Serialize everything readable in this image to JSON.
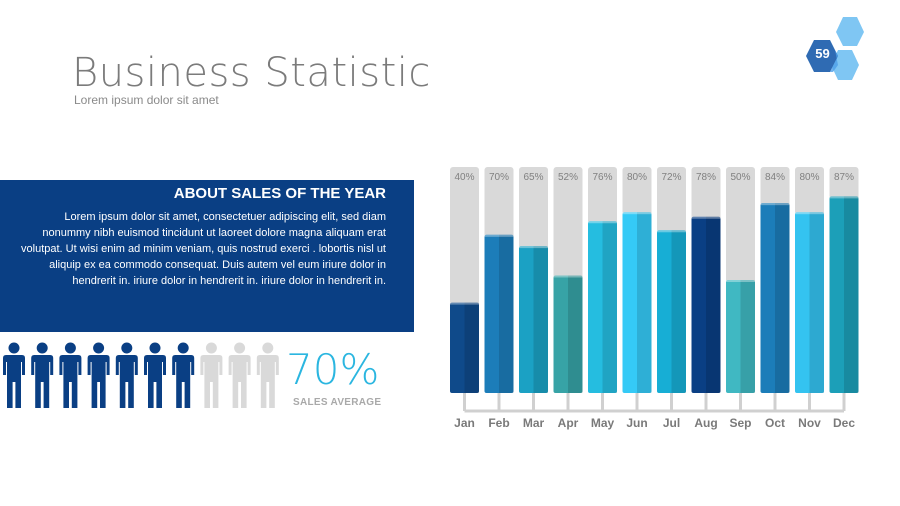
{
  "slide": {
    "title": "Business Statistic",
    "subtitle": "Lorem ipsum dolor sit amet",
    "page_number": "59"
  },
  "info": {
    "heading": "ABOUT SALES OF THE YEAR",
    "body": "Lorem ipsum dolor sit amet, consectetuer adipiscing elit, sed diam nonummy nibh euismod tincidunt ut laoreet dolore magna aliquam erat volutpat. Ut wisi enim ad minim veniam, quis nostrud exerci . lobortis nisl ut aliquip ex ea commodo consequat. Duis autem vel eum iriure dolor in hendrerit in. iriure dolor in hendrerit in. iriure dolor in hendrerit in."
  },
  "sales_average": {
    "value": "70%",
    "label": "SALES AVERAGE",
    "filled_people": 7,
    "total_people": 10,
    "filled_color": "#0a3f84",
    "empty_color": "#d9d9d9"
  },
  "colors": {
    "brand_dark": "#0a3f84",
    "accent_cyan": "#2bb6e0",
    "badge_light": "#7fc6f3",
    "badge_mid": "#4d9fe8",
    "badge_dark": "#2f6bb3",
    "track": "#d9d9d9"
  },
  "chart_data": {
    "type": "bar",
    "categories": [
      "Jan",
      "Feb",
      "Mar",
      "Apr",
      "May",
      "Jun",
      "Jul",
      "Aug",
      "Sep",
      "Oct",
      "Nov",
      "Dec"
    ],
    "values": [
      40,
      70,
      65,
      52,
      76,
      80,
      72,
      78,
      50,
      84,
      80,
      87
    ],
    "value_labels": [
      "40%",
      "70%",
      "65%",
      "52%",
      "76%",
      "80%",
      "72%",
      "78%",
      "50%",
      "84%",
      "80%",
      "87%"
    ],
    "ylim": [
      0,
      100
    ],
    "bar_colors": [
      "#0f4a8a",
      "#1c7db9",
      "#1ba1c4",
      "#37a3a6",
      "#25bde0",
      "#35caf6",
      "#17aed5",
      "#0a3f84",
      "#40b8c2",
      "#1c7db9",
      "#34c3f0",
      "#1c9fb8"
    ],
    "track_color": "#d9d9d9",
    "grid": false,
    "legend": "none"
  }
}
